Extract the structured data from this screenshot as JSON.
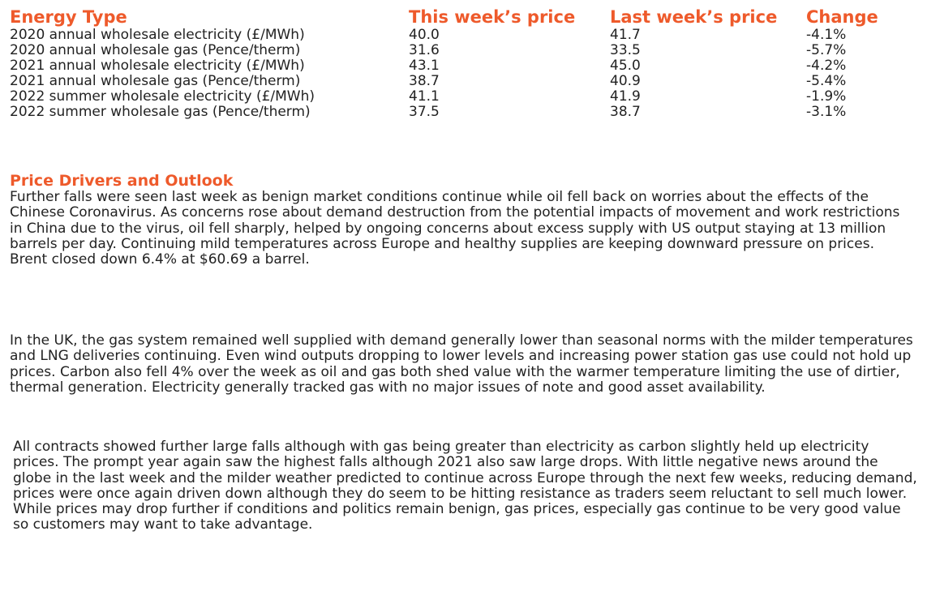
{
  "table": {
    "headers": [
      "Energy Type",
      "This week’s price",
      "Last week’s price",
      "Change"
    ],
    "rows": [
      [
        "2020 annual wholesale electricity (£/MWh)",
        "40.0",
        "41.7",
        "-4.1%"
      ],
      [
        "2020 annual wholesale gas (Pence/therm)",
        "31.6",
        "33.5",
        "-5.7%"
      ],
      [
        "2021 annual wholesale electricity (£/MWh)",
        "43.1",
        "45.0",
        "-4.2%"
      ],
      [
        "2021 annual wholesale gas (Pence/therm)",
        "38.7",
        "40.9",
        "-5.4%"
      ],
      [
        "2022 summer wholesale electricity (£/MWh)",
        "41.1",
        "41.9",
        "-1.9%"
      ],
      [
        "2022 summer wholesale gas (Pence/therm)",
        "37.5",
        "38.7",
        "-3.1%"
      ]
    ]
  },
  "outlook": {
    "title": "Price Drivers and Outlook",
    "paragraphs": [
      "Further falls were seen last week as benign market conditions continue while oil fell back on worries about the effects of the Chinese Coronavirus. As concerns rose about demand destruction from the potential impacts of movement and work restrictions in China due to the virus, oil fell sharply, helped by ongoing concerns about excess supply with US output staying at 13 million barrels per day. Continuing mild temperatures across Europe and healthy supplies are keeping downward pressure on prices. Brent closed down 6.4% at $60.69 a barrel.",
      "In the UK, the gas system remained well supplied with demand generally lower than seasonal norms with the milder temperatures and LNG deliveries continuing. Even wind outputs dropping to lower levels and increasing power station gas use could not hold up prices. Carbon also fell 4% over the week as oil and gas both shed value with the warmer temperature limiting the use of dirtier, thermal generation. Electricity generally tracked gas with no major issues of note and good asset availability.",
      "All contracts showed further large falls although with gas being greater than electricity as carbon slightly held up electricity prices. The prompt year again saw the highest falls although 2021 also saw large drops. With little negative news around the globe in the last week and the milder weather predicted to continue across Europe through the next few weeks, reducing demand, prices were once again driven down although they do seem to be hitting resistance as traders seem reluctant to sell much lower. While prices may drop further if conditions and politics remain benign, gas prices, especially gas continue to be very good value so customers may want to take advantage."
    ]
  },
  "colors": {
    "accent": "#ee5a2b",
    "text": "#222222"
  }
}
